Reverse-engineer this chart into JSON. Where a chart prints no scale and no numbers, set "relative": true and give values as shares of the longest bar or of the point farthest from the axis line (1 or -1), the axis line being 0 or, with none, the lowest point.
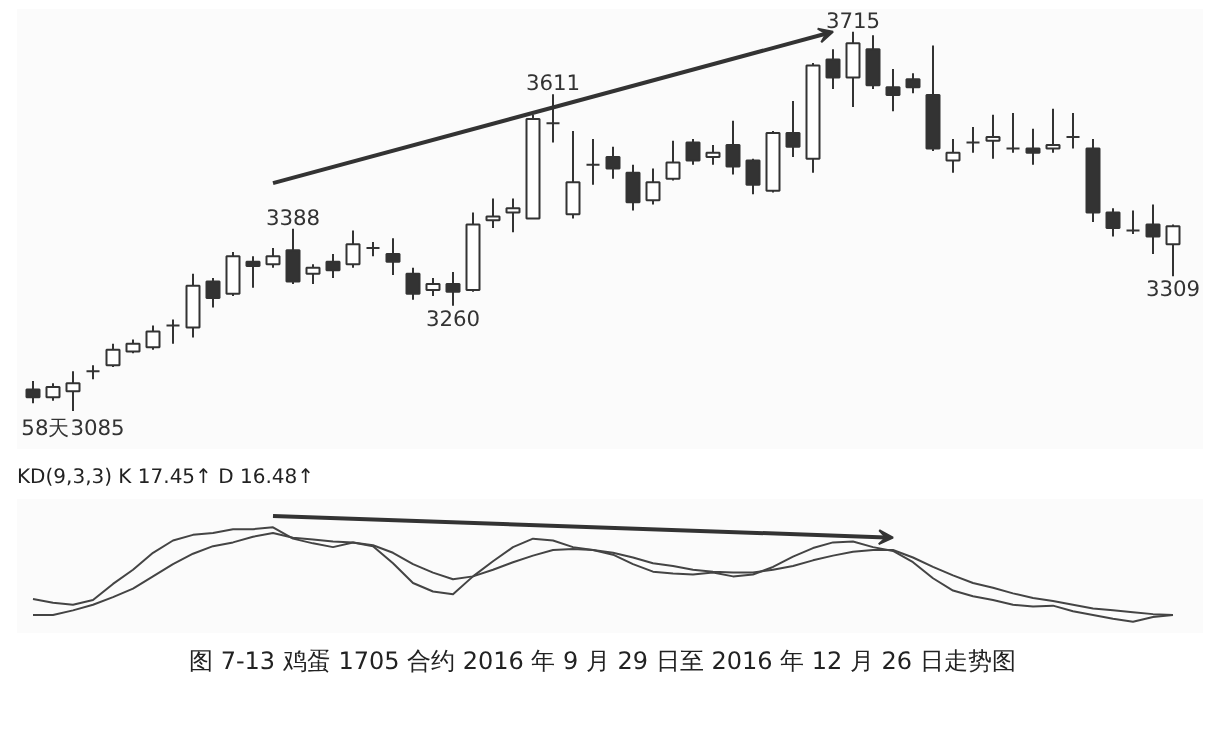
{
  "chart_data": [
    {
      "type": "candlestick",
      "title": "图 7-13   鸡蛋 1705 合约 2016 年 9 月 29 日至 2016 年 12 月 26 日走势图",
      "categories": [
        null,
        null,
        null,
        null,
        null,
        null,
        null,
        null,
        null,
        null,
        null,
        null,
        null,
        null,
        null,
        null,
        null,
        null,
        null,
        null,
        null,
        null,
        null,
        null,
        null,
        null,
        null,
        null,
        null,
        null,
        null,
        null,
        null,
        null,
        null,
        null,
        null,
        null,
        null,
        null,
        null,
        null,
        null,
        null,
        null,
        null,
        null,
        null,
        null,
        null,
        null,
        null,
        null,
        null,
        null,
        null,
        null,
        null
      ],
      "ohlc": [
        [
          3121,
          3135,
          3098,
          3108
        ],
        [
          3108,
          3131,
          3102,
          3125
        ],
        [
          3118,
          3151,
          3085,
          3131
        ],
        [
          3151,
          3161,
          3138,
          3151
        ],
        [
          3161,
          3197,
          3158,
          3187
        ],
        [
          3184,
          3204,
          3181,
          3197
        ],
        [
          3191,
          3227,
          3187,
          3217
        ],
        [
          3227,
          3237,
          3197,
          3227
        ],
        [
          3224,
          3313,
          3207,
          3293
        ],
        [
          3300,
          3306,
          3257,
          3273
        ],
        [
          3280,
          3349,
          3276,
          3342
        ],
        [
          3333,
          3342,
          3290,
          3326
        ],
        [
          3329,
          3356,
          3323,
          3342
        ],
        [
          3352,
          3388,
          3296,
          3300
        ],
        [
          3313,
          3329,
          3296,
          3323
        ],
        [
          3333,
          3346,
          3306,
          3319
        ],
        [
          3329,
          3385,
          3323,
          3362
        ],
        [
          3356,
          3366,
          3342,
          3356
        ],
        [
          3346,
          3372,
          3311,
          3333
        ],
        [
          3313,
          3323,
          3270,
          3280
        ],
        [
          3286,
          3306,
          3276,
          3296
        ],
        [
          3296,
          3316,
          3260,
          3283
        ],
        [
          3286,
          3415,
          3283,
          3395
        ],
        [
          3402,
          3438,
          3389,
          3408
        ],
        [
          3415,
          3438,
          3382,
          3422
        ],
        [
          3405,
          3577,
          3405,
          3570
        ],
        [
          3563,
          3611,
          3531,
          3563
        ],
        [
          3412,
          3550,
          3405,
          3465
        ],
        [
          3494,
          3537,
          3461,
          3494
        ],
        [
          3507,
          3524,
          3471,
          3488
        ],
        [
          3481,
          3494,
          3418,
          3432
        ],
        [
          3435,
          3488,
          3428,
          3465
        ],
        [
          3471,
          3534,
          3468,
          3498
        ],
        [
          3531,
          3537,
          3494,
          3501
        ],
        [
          3507,
          3527,
          3494,
          3514
        ],
        [
          3527,
          3567,
          3478,
          3491
        ],
        [
          3501,
          3504,
          3445,
          3461
        ],
        [
          3451,
          3550,
          3448,
          3547
        ],
        [
          3547,
          3600,
          3507,
          3524
        ],
        [
          3504,
          3663,
          3481,
          3659
        ],
        [
          3669,
          3686,
          3620,
          3639
        ],
        [
          3639,
          3715,
          3590,
          3696
        ],
        [
          3686,
          3709,
          3620,
          3626
        ],
        [
          3623,
          3653,
          3583,
          3610
        ],
        [
          3636,
          3646,
          3613,
          3623
        ],
        [
          3610,
          3692,
          3517,
          3521
        ],
        [
          3501,
          3537,
          3481,
          3514
        ],
        [
          3531,
          3557,
          3514,
          3531
        ],
        [
          3534,
          3577,
          3504,
          3540
        ],
        [
          3521,
          3580,
          3514,
          3521
        ],
        [
          3521,
          3554,
          3494,
          3514
        ],
        [
          3521,
          3587,
          3514,
          3527
        ],
        [
          3540,
          3580,
          3521,
          3540
        ],
        [
          3521,
          3537,
          3399,
          3415
        ],
        [
          3415,
          3422,
          3375,
          3389
        ],
        [
          3385,
          3418,
          3379,
          3385
        ],
        [
          3395,
          3428,
          3346,
          3375
        ],
        [
          3362,
          3395,
          3309,
          3392
        ]
      ],
      "annotations": [
        {
          "text": "58天3085",
          "y": 3085
        },
        {
          "text": "3388",
          "y": 3388
        },
        {
          "text": "3260",
          "y": 3260
        },
        {
          "text": "3611",
          "y": 3611
        },
        {
          "text": "3715",
          "y": 3715
        },
        {
          "text": "3309",
          "y": 3309
        }
      ],
      "tick_labels": false
    },
    {
      "type": "line",
      "relative": true,
      "tick_labels": false,
      "categories": [
        null,
        null,
        null,
        null,
        null,
        null,
        null,
        null,
        null,
        null,
        null,
        null,
        null,
        null,
        null,
        null,
        null,
        null,
        null,
        null,
        null,
        null,
        null,
        null,
        null,
        null,
        null,
        null,
        null,
        null,
        null,
        null,
        null,
        null,
        null,
        null,
        null,
        null,
        null,
        null,
        null,
        null,
        null,
        null,
        null,
        null,
        null,
        null,
        null,
        null,
        null,
        null,
        null,
        null,
        null,
        null,
        null,
        null
      ],
      "annotations": [
        "KD(9,3,3)  K  17.45↑  D  16.48↑"
      ],
      "series": [
        {
          "color": "#444444",
          "values": [
            0.24,
            0.2,
            0.18,
            0.23,
            0.4,
            0.55,
            0.73,
            0.86,
            0.92,
            0.94,
            0.98,
            0.98,
            1.0,
            0.88,
            0.83,
            0.79,
            0.84,
            0.8,
            0.62,
            0.41,
            0.32,
            0.29,
            0.48,
            0.64,
            0.79,
            0.88,
            0.86,
            0.79,
            0.76,
            0.71,
            0.61,
            0.53,
            0.51,
            0.5,
            0.52,
            0.48,
            0.5,
            0.58,
            0.69,
            0.78,
            0.84,
            0.85,
            0.79,
            0.75,
            0.63,
            0.46,
            0.33,
            0.27,
            0.23,
            0.18,
            0.16,
            0.17,
            0.11,
            0.07,
            0.03,
            0.0,
            0.05,
            0.07
          ]
        },
        {
          "color": "#444444",
          "values": [
            0.07,
            0.07,
            0.12,
            0.18,
            0.26,
            0.35,
            0.48,
            0.61,
            0.72,
            0.8,
            0.84,
            0.9,
            0.94,
            0.89,
            0.87,
            0.85,
            0.84,
            0.81,
            0.73,
            0.61,
            0.52,
            0.45,
            0.48,
            0.55,
            0.63,
            0.7,
            0.76,
            0.77,
            0.76,
            0.73,
            0.68,
            0.62,
            0.59,
            0.55,
            0.53,
            0.52,
            0.52,
            0.55,
            0.59,
            0.65,
            0.7,
            0.74,
            0.76,
            0.76,
            0.68,
            0.58,
            0.49,
            0.41,
            0.36,
            0.3,
            0.25,
            0.22,
            0.18,
            0.14,
            0.12,
            0.1,
            0.08,
            0.07
          ]
        }
      ]
    }
  ]
}
